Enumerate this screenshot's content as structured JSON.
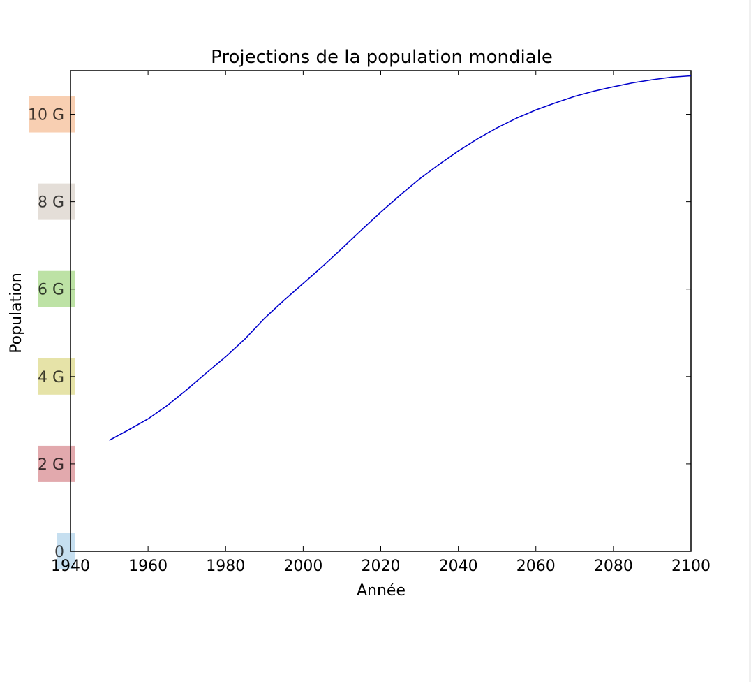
{
  "chart_data": {
    "type": "line",
    "title": "Projections de la population mondiale",
    "xlabel": "Année",
    "ylabel": "Population",
    "xlim": [
      1940,
      2100
    ],
    "ylim": [
      0,
      11000000000
    ],
    "grid": false,
    "x_ticks": [
      1940,
      1960,
      1980,
      2000,
      2020,
      2040,
      2060,
      2080,
      2100
    ],
    "y_ticks": [
      {
        "value": 0,
        "label": "0",
        "color": "#c6dff0"
      },
      {
        "value": 2000000000,
        "label": "2 G",
        "color": "#e2a9ad"
      },
      {
        "value": 4000000000,
        "label": "4 G",
        "color": "#e6e3a8"
      },
      {
        "value": 6000000000,
        "label": "6 G",
        "color": "#bde2a5"
      },
      {
        "value": 8000000000,
        "label": "8 G",
        "color": "#e4ded8"
      },
      {
        "value": 10000000000,
        "label": "10 G",
        "color": "#f8cfb2"
      }
    ],
    "series": [
      {
        "color": "#0000cc",
        "x": [
          1950,
          1955,
          1960,
          1965,
          1970,
          1975,
          1980,
          1985,
          1990,
          1995,
          2000,
          2005,
          2010,
          2015,
          2020,
          2025,
          2030,
          2035,
          2040,
          2045,
          2050,
          2055,
          2060,
          2065,
          2070,
          2075,
          2080,
          2085,
          2090,
          2095,
          2100
        ],
        "values": [
          2540000000,
          2780000000,
          3030000000,
          3340000000,
          3700000000,
          4080000000,
          4450000000,
          4860000000,
          5330000000,
          5740000000,
          6130000000,
          6520000000,
          6930000000,
          7350000000,
          7760000000,
          8150000000,
          8520000000,
          8850000000,
          9160000000,
          9440000000,
          9690000000,
          9910000000,
          10100000000,
          10260000000,
          10410000000,
          10530000000,
          10630000000,
          10720000000,
          10790000000,
          10850000000,
          10880000000
        ]
      }
    ]
  }
}
